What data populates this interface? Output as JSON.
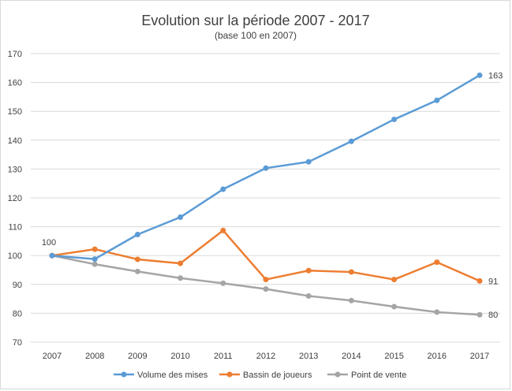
{
  "chart_data": {
    "type": "line",
    "title": "Evolution sur la période 2007 - 2017",
    "subtitle": "(base 100 en 2007)",
    "xlabel": "",
    "ylabel": "",
    "grid": true,
    "legend_position": "bottom",
    "ylim": [
      70,
      170
    ],
    "yticks": [
      "70",
      "80",
      "90",
      "100",
      "110",
      "120",
      "130",
      "140",
      "150",
      "160",
      "170"
    ],
    "categories": [
      "2007",
      "2008",
      "2009",
      "2010",
      "2011",
      "2012",
      "2013",
      "2014",
      "2015",
      "2016",
      "2017"
    ],
    "series": [
      {
        "name": "Volume des mises",
        "color": "#5b9bd5",
        "values": [
          100,
          98.8,
          107.3,
          113.3,
          123,
          130.3,
          132.5,
          139.6,
          147.2,
          153.8,
          162.5
        ]
      },
      {
        "name": "Bassin de joueurs",
        "color": "#ed7d31",
        "values": [
          100,
          102.2,
          98.7,
          97.3,
          108.7,
          91.7,
          94.8,
          94.3,
          91.7,
          97.7,
          91.2
        ]
      },
      {
        "name": "Point de vente",
        "color": "#a5a5a5",
        "values": [
          100,
          97,
          94.5,
          92.2,
          90.4,
          88.4,
          86,
          84.4,
          82.3,
          80.4,
          79.5
        ]
      }
    ],
    "annotations": [
      {
        "series": 0,
        "index": 0,
        "text": "100"
      },
      {
        "series": 0,
        "index": 10,
        "text": "163"
      },
      {
        "series": 1,
        "index": 10,
        "text": "91"
      },
      {
        "series": 2,
        "index": 10,
        "text": "80"
      }
    ]
  }
}
